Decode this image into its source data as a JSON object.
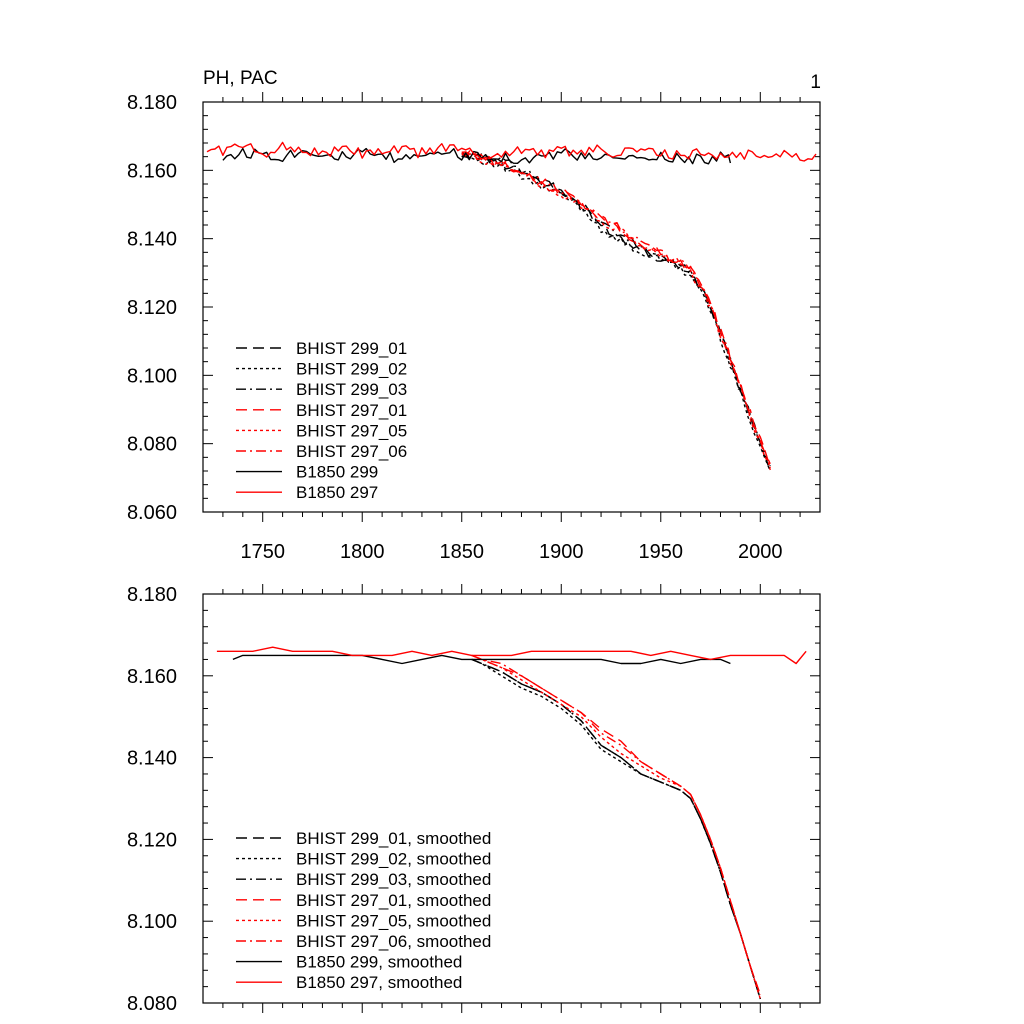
{
  "header": {
    "title": "PH, PAC",
    "panel_number": "1"
  },
  "colors": {
    "black": "#000000",
    "red": "#ff0000"
  },
  "chart_data": [
    {
      "type": "line",
      "title": "",
      "xlabel": "",
      "ylabel": "",
      "xlim": [
        1720,
        2030
      ],
      "ylim": [
        8.06,
        8.18
      ],
      "x_ticks": [
        1750,
        1800,
        1850,
        1900,
        1950,
        2000
      ],
      "x_tick_labels": [
        "1750",
        "1800",
        "1850",
        "1900",
        "1950",
        "2000"
      ],
      "y_ticks": [
        8.06,
        8.08,
        8.1,
        8.12,
        8.14,
        8.16,
        8.18
      ],
      "y_tick_labels": [
        "8.060",
        "8.080",
        "8.100",
        "8.120",
        "8.140",
        "8.160",
        "8.180"
      ],
      "grid": false,
      "legend_position": "bottom-left",
      "series": [
        {
          "name": "BHIST 299_01",
          "color": "#000000",
          "dash": "dashed",
          "x": [
            1850,
            1860,
            1870,
            1880,
            1890,
            1900,
            1910,
            1920,
            1930,
            1940,
            1950,
            1960,
            1965,
            1970,
            1975,
            1980,
            1985,
            1990,
            1995,
            2000,
            2005
          ],
          "y": [
            8.164,
            8.164,
            8.162,
            8.16,
            8.157,
            8.154,
            8.15,
            8.144,
            8.14,
            8.137,
            8.134,
            8.132,
            8.13,
            8.126,
            8.12,
            8.112,
            8.104,
            8.096,
            8.088,
            8.08,
            8.073
          ]
        },
        {
          "name": "BHIST 299_02",
          "color": "#000000",
          "dash": "dotted",
          "x": [
            1850,
            1860,
            1870,
            1880,
            1890,
            1900,
            1910,
            1920,
            1930,
            1940,
            1950,
            1960,
            1965,
            1970,
            1975,
            1980,
            1985,
            1990,
            1995,
            2000,
            2005
          ],
          "y": [
            8.165,
            8.163,
            8.161,
            8.158,
            8.155,
            8.153,
            8.149,
            8.143,
            8.139,
            8.136,
            8.134,
            8.131,
            8.129,
            8.125,
            8.119,
            8.111,
            8.103,
            8.095,
            8.087,
            8.079,
            8.072
          ]
        },
        {
          "name": "BHIST 299_03",
          "color": "#000000",
          "dash": "dashdot",
          "x": [
            1850,
            1860,
            1870,
            1880,
            1890,
            1900,
            1910,
            1920,
            1930,
            1940,
            1950,
            1960,
            1965,
            1970,
            1975,
            1980,
            1985,
            1990,
            1995,
            2000,
            2005
          ],
          "y": [
            8.164,
            8.164,
            8.163,
            8.16,
            8.157,
            8.154,
            8.149,
            8.144,
            8.141,
            8.137,
            8.135,
            8.132,
            8.13,
            8.126,
            8.12,
            8.112,
            8.104,
            8.096,
            8.088,
            8.08,
            8.073
          ]
        },
        {
          "name": "BHIST 297_01",
          "color": "#ff0000",
          "dash": "dashed",
          "x": [
            1850,
            1860,
            1870,
            1880,
            1890,
            1900,
            1910,
            1920,
            1930,
            1940,
            1950,
            1960,
            1965,
            1970,
            1975,
            1980,
            1985,
            1990,
            1995,
            2000,
            2005
          ],
          "y": [
            8.165,
            8.164,
            8.162,
            8.159,
            8.156,
            8.154,
            8.15,
            8.146,
            8.143,
            8.138,
            8.136,
            8.133,
            8.131,
            8.127,
            8.121,
            8.113,
            8.105,
            8.097,
            8.089,
            8.081,
            8.074
          ]
        },
        {
          "name": "BHIST 297_05",
          "color": "#ff0000",
          "dash": "dotted",
          "x": [
            1850,
            1860,
            1870,
            1880,
            1890,
            1900,
            1910,
            1920,
            1930,
            1940,
            1950,
            1960,
            1965,
            1970,
            1975,
            1980,
            1985,
            1990,
            1995,
            2000,
            2005
          ],
          "y": [
            8.165,
            8.163,
            8.162,
            8.159,
            8.156,
            8.153,
            8.15,
            8.145,
            8.142,
            8.138,
            8.135,
            8.133,
            8.13,
            8.126,
            8.12,
            8.112,
            8.104,
            8.096,
            8.088,
            8.08,
            8.073
          ]
        },
        {
          "name": "BHIST 297_06",
          "color": "#ff0000",
          "dash": "dashdot",
          "x": [
            1850,
            1860,
            1870,
            1880,
            1890,
            1900,
            1910,
            1920,
            1930,
            1940,
            1950,
            1960,
            1965,
            1970,
            1975,
            1980,
            1985,
            1990,
            1995,
            2000,
            2005
          ],
          "y": [
            8.165,
            8.164,
            8.162,
            8.159,
            8.157,
            8.154,
            8.151,
            8.146,
            8.142,
            8.139,
            8.136,
            8.133,
            8.131,
            8.127,
            8.121,
            8.113,
            8.105,
            8.097,
            8.089,
            8.081,
            8.074
          ]
        },
        {
          "name": "B1850 299",
          "color": "#000000",
          "dash": "solid",
          "x": [
            1730,
            1740,
            1750,
            1760,
            1770,
            1780,
            1790,
            1800,
            1810,
            1820,
            1830,
            1840,
            1850,
            1860,
            1870,
            1880,
            1890,
            1900,
            1910,
            1920,
            1930,
            1940,
            1950,
            1960,
            1970,
            1980,
            1985
          ],
          "y": [
            8.164,
            8.165,
            8.165,
            8.164,
            8.166,
            8.165,
            8.164,
            8.165,
            8.164,
            8.163,
            8.165,
            8.166,
            8.164,
            8.165,
            8.164,
            8.163,
            8.164,
            8.165,
            8.164,
            8.163,
            8.164,
            8.163,
            8.164,
            8.164,
            8.163,
            8.164,
            8.163
          ]
        },
        {
          "name": "B1850 297",
          "color": "#ff0000",
          "dash": "solid",
          "x": [
            1722,
            1730,
            1740,
            1750,
            1760,
            1770,
            1780,
            1790,
            1800,
            1810,
            1820,
            1830,
            1840,
            1850,
            1860,
            1870,
            1880,
            1890,
            1900,
            1910,
            1920,
            1930,
            1940,
            1950,
            1960,
            1970,
            1980,
            1990,
            2000,
            2010,
            2020,
            2028
          ],
          "y": [
            8.166,
            8.166,
            8.167,
            8.165,
            8.167,
            8.166,
            8.165,
            8.166,
            8.165,
            8.165,
            8.166,
            8.165,
            8.167,
            8.166,
            8.164,
            8.165,
            8.166,
            8.165,
            8.166,
            8.165,
            8.166,
            8.165,
            8.166,
            8.165,
            8.164,
            8.165,
            8.164,
            8.165,
            8.164,
            8.165,
            8.164,
            8.165
          ]
        }
      ]
    },
    {
      "type": "line",
      "title": "",
      "xlabel": "",
      "ylabel": "",
      "xlim": [
        1720,
        2030
      ],
      "ylim": [
        8.08,
        8.18
      ],
      "x_ticks": [
        1750,
        1800,
        1850,
        1900,
        1950,
        2000
      ],
      "y_ticks": [
        8.08,
        8.1,
        8.12,
        8.14,
        8.16,
        8.18
      ],
      "y_tick_labels": [
        "8.080",
        "8.100",
        "8.120",
        "8.140",
        "8.160",
        "8.180"
      ],
      "grid": false,
      "legend_position": "bottom-left",
      "series": [
        {
          "name": "BHIST 299_01, smoothed",
          "color": "#000000",
          "dash": "dashed",
          "x": [
            1855,
            1860,
            1870,
            1880,
            1890,
            1900,
            1910,
            1920,
            1930,
            1940,
            1950,
            1960,
            1965,
            1970,
            1975,
            1980,
            1985,
            1990,
            1995,
            2000
          ],
          "y": [
            8.164,
            8.163,
            8.161,
            8.158,
            8.156,
            8.153,
            8.149,
            8.143,
            8.14,
            8.136,
            8.134,
            8.132,
            8.13,
            8.125,
            8.119,
            8.112,
            8.104,
            8.097,
            8.089,
            8.081
          ]
        },
        {
          "name": "BHIST 299_02, smoothed",
          "color": "#000000",
          "dash": "dotted",
          "x": [
            1855,
            1860,
            1870,
            1880,
            1890,
            1900,
            1910,
            1920,
            1930,
            1940,
            1950,
            1960,
            1965,
            1970,
            1975,
            1980,
            1985,
            1990,
            1995,
            2000
          ],
          "y": [
            8.164,
            8.163,
            8.16,
            8.157,
            8.155,
            8.152,
            8.148,
            8.142,
            8.139,
            8.136,
            8.134,
            8.132,
            8.13,
            8.125,
            8.119,
            8.112,
            8.104,
            8.097,
            8.089,
            8.081
          ]
        },
        {
          "name": "BHIST 299_03, smoothed",
          "color": "#000000",
          "dash": "dashdot",
          "x": [
            1855,
            1860,
            1870,
            1880,
            1890,
            1900,
            1910,
            1920,
            1930,
            1940,
            1950,
            1960,
            1965,
            1970,
            1975,
            1980,
            1985,
            1990,
            1995,
            2000
          ],
          "y": [
            8.164,
            8.163,
            8.161,
            8.158,
            8.156,
            8.153,
            8.149,
            8.143,
            8.14,
            8.136,
            8.134,
            8.132,
            8.13,
            8.125,
            8.119,
            8.112,
            8.104,
            8.097,
            8.089,
            8.081
          ]
        },
        {
          "name": "BHIST 297_01, smoothed",
          "color": "#ff0000",
          "dash": "dashed",
          "x": [
            1855,
            1860,
            1870,
            1880,
            1890,
            1900,
            1910,
            1920,
            1930,
            1940,
            1950,
            1960,
            1965,
            1970,
            1975,
            1980,
            1985,
            1990,
            1995,
            2000
          ],
          "y": [
            8.165,
            8.164,
            8.162,
            8.16,
            8.157,
            8.154,
            8.151,
            8.147,
            8.144,
            8.139,
            8.136,
            8.133,
            8.131,
            8.126,
            8.12,
            8.113,
            8.105,
            8.097,
            8.089,
            8.082
          ]
        },
        {
          "name": "BHIST 297_05, smoothed",
          "color": "#ff0000",
          "dash": "dotted",
          "x": [
            1855,
            1860,
            1870,
            1880,
            1890,
            1900,
            1910,
            1920,
            1930,
            1940,
            1950,
            1960,
            1965,
            1970,
            1975,
            1980,
            1985,
            1990,
            1995,
            2000
          ],
          "y": [
            8.165,
            8.164,
            8.162,
            8.159,
            8.156,
            8.153,
            8.15,
            8.145,
            8.141,
            8.138,
            8.135,
            8.133,
            8.131,
            8.126,
            8.12,
            8.113,
            8.105,
            8.097,
            8.089,
            8.081
          ]
        },
        {
          "name": "BHIST 297_06, smoothed",
          "color": "#ff0000",
          "dash": "dashdot",
          "x": [
            1855,
            1860,
            1870,
            1880,
            1890,
            1900,
            1910,
            1920,
            1930,
            1940,
            1950,
            1960,
            1965,
            1970,
            1975,
            1980,
            1985,
            1990,
            1995,
            2000
          ],
          "y": [
            8.165,
            8.164,
            8.163,
            8.16,
            8.157,
            8.154,
            8.151,
            8.146,
            8.143,
            8.139,
            8.136,
            8.133,
            8.131,
            8.126,
            8.12,
            8.113,
            8.105,
            8.097,
            8.089,
            8.082
          ]
        },
        {
          "name": "B1850 299, smoothed",
          "color": "#000000",
          "dash": "solid",
          "x": [
            1735,
            1740,
            1750,
            1760,
            1770,
            1780,
            1790,
            1800,
            1810,
            1820,
            1830,
            1840,
            1850,
            1860,
            1870,
            1880,
            1890,
            1900,
            1910,
            1920,
            1930,
            1940,
            1950,
            1960,
            1970,
            1980,
            1985
          ],
          "y": [
            8.164,
            8.165,
            8.165,
            8.165,
            8.165,
            8.165,
            8.165,
            8.165,
            8.164,
            8.163,
            8.164,
            8.165,
            8.164,
            8.164,
            8.164,
            8.164,
            8.164,
            8.164,
            8.164,
            8.164,
            8.163,
            8.163,
            8.164,
            8.163,
            8.164,
            8.164,
            8.163
          ]
        },
        {
          "name": "B1850 297, smoothed",
          "color": "#ff0000",
          "dash": "solid",
          "x": [
            1727,
            1735,
            1745,
            1755,
            1765,
            1775,
            1785,
            1795,
            1805,
            1815,
            1825,
            1835,
            1845,
            1855,
            1865,
            1875,
            1885,
            1895,
            1905,
            1915,
            1925,
            1935,
            1945,
            1955,
            1965,
            1975,
            1985,
            1995,
            2005,
            2012,
            2018,
            2023
          ],
          "y": [
            8.166,
            8.166,
            8.166,
            8.167,
            8.166,
            8.166,
            8.166,
            8.165,
            8.165,
            8.165,
            8.166,
            8.165,
            8.166,
            8.165,
            8.165,
            8.165,
            8.166,
            8.166,
            8.166,
            8.166,
            8.166,
            8.166,
            8.165,
            8.166,
            8.165,
            8.164,
            8.165,
            8.165,
            8.165,
            8.165,
            8.163,
            8.166
          ]
        }
      ]
    }
  ]
}
